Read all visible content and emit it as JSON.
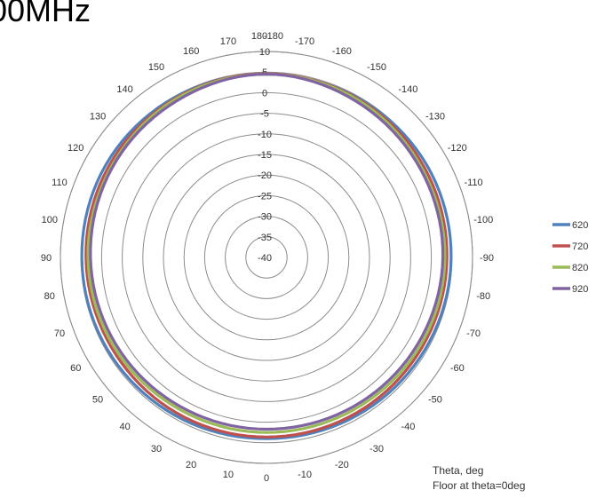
{
  "title": "00MHz",
  "notes": [
    "Theta, deg",
    "Floor at theta=0deg"
  ],
  "chart_data": {
    "type": "polar-line",
    "radial_ticks": [
      -40,
      -35,
      -30,
      -25,
      -20,
      -15,
      -10,
      -5,
      0,
      5,
      10
    ],
    "radial_range": [
      -40,
      10
    ],
    "angle_ticks": [
      180,
      170,
      160,
      150,
      140,
      130,
      120,
      110,
      100,
      90,
      80,
      70,
      60,
      50,
      40,
      30,
      20,
      10,
      0,
      -10,
      -20,
      -30,
      -40,
      -50,
      -60,
      -70,
      -80,
      -90,
      -100,
      -110,
      -120,
      -130,
      -140,
      -150,
      -160,
      -170,
      -180
    ],
    "angle_tick_labels": [
      "180",
      "170",
      "160",
      "150",
      "140",
      "130",
      "120",
      "110",
      "100",
      "90",
      "80",
      "70",
      "60",
      "50",
      "40",
      "30",
      "20",
      "10",
      "0",
      "-10",
      "-20",
      "-30",
      "-40",
      "-50",
      "-60",
      "-70",
      "-80",
      "-90",
      "-100",
      "-110",
      "-120",
      "-130",
      "-140",
      "-150",
      "-160",
      "-170",
      "-180"
    ],
    "radial_tick_labels": [
      "-40",
      "-35",
      "-30",
      "-25",
      "-20",
      "-15",
      "-10",
      "-5",
      "0",
      "5",
      "10"
    ],
    "grid": true,
    "legend_position": "right",
    "angles": [
      180,
      150,
      120,
      90,
      60,
      30,
      0,
      -30,
      -60,
      -90,
      -120,
      -150
    ],
    "series": [
      {
        "name": "620",
        "color": "#4f81bd",
        "values": [
          4.5,
          4.8,
          5.0,
          4.8,
          4.6,
          4.3,
          4.0,
          4.2,
          4.5,
          4.8,
          4.9,
          4.6
        ]
      },
      {
        "name": "720",
        "color": "#c0504d",
        "values": [
          4.6,
          4.5,
          4.2,
          3.8,
          3.5,
          3.6,
          3.6,
          3.6,
          3.6,
          3.8,
          4.1,
          4.4
        ]
      },
      {
        "name": "820",
        "color": "#9bbb59",
        "values": [
          4.5,
          4.3,
          3.6,
          3.3,
          2.9,
          2.5,
          2.5,
          2.6,
          3.0,
          3.3,
          3.5,
          4.2
        ]
      },
      {
        "name": "920",
        "color": "#8064a2",
        "values": [
          4.5,
          3.8,
          3.3,
          2.7,
          2.2,
          1.8,
          1.7,
          1.9,
          2.3,
          2.8,
          3.1,
          3.7
        ]
      }
    ]
  }
}
